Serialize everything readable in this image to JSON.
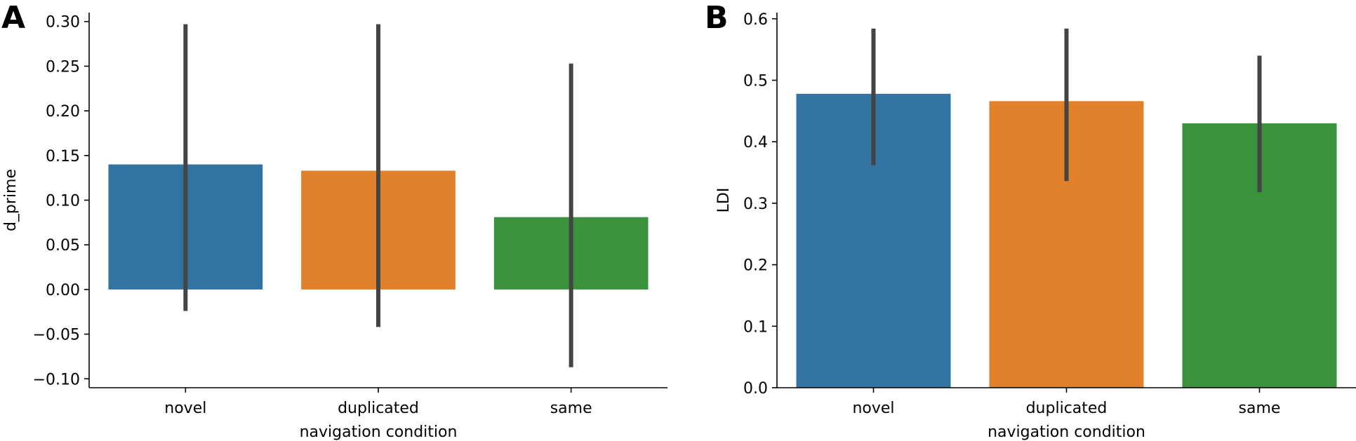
{
  "chart_data": [
    {
      "panel_label": "A",
      "type": "bar",
      "categories": [
        "novel",
        "duplicated",
        "same"
      ],
      "values": [
        0.14,
        0.133,
        0.081
      ],
      "error_bars": [
        [
          -0.024,
          0.297
        ],
        [
          -0.042,
          0.297
        ],
        [
          -0.087,
          0.253
        ]
      ],
      "colors": [
        "#3274a1",
        "#e1812c",
        "#3a923a"
      ],
      "error_color": "#444444",
      "xlabel": "navigation condition",
      "ylabel": "d_prime",
      "ylim": [
        -0.11,
        0.31
      ],
      "yticks": [
        -0.1,
        -0.05,
        0.0,
        0.05,
        0.1,
        0.15,
        0.2,
        0.25,
        0.3
      ],
      "ytick_labels": [
        "−0.10",
        "−0.05",
        "0.00",
        "0.05",
        "0.10",
        "0.15",
        "0.20",
        "0.25",
        "0.30"
      ],
      "grid": false
    },
    {
      "panel_label": "B",
      "type": "bar",
      "categories": [
        "novel",
        "duplicated",
        "same"
      ],
      "values": [
        0.478,
        0.466,
        0.43
      ],
      "error_bars": [
        [
          0.362,
          0.584
        ],
        [
          0.336,
          0.584
        ],
        [
          0.318,
          0.54
        ]
      ],
      "colors": [
        "#3274a1",
        "#e1812c",
        "#3a923a"
      ],
      "error_color": "#444444",
      "xlabel": "navigation condition",
      "ylabel": "LDI",
      "ylim": [
        0.0,
        0.61
      ],
      "yticks": [
        0.0,
        0.1,
        0.2,
        0.3,
        0.4,
        0.5,
        0.6
      ],
      "ytick_labels": [
        "0.0",
        "0.1",
        "0.2",
        "0.3",
        "0.4",
        "0.5",
        "0.6"
      ],
      "grid": false
    }
  ]
}
